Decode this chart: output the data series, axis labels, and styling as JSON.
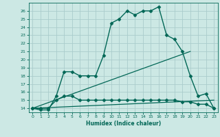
{
  "background_color": "#cce8e4",
  "grid_color": "#aacccc",
  "line_color": "#006655",
  "xlabel": "Humidex (Indice chaleur)",
  "ylim": [
    13.5,
    27.0
  ],
  "xlim": [
    -0.5,
    23.5
  ],
  "yticks": [
    14,
    15,
    16,
    17,
    18,
    19,
    20,
    21,
    22,
    23,
    24,
    25,
    26
  ],
  "xticks": [
    0,
    1,
    2,
    3,
    4,
    5,
    6,
    7,
    8,
    9,
    10,
    11,
    12,
    13,
    14,
    15,
    16,
    17,
    18,
    19,
    20,
    21,
    22,
    23
  ],
  "series": [
    {
      "x": [
        0,
        1,
        2,
        3,
        4,
        5,
        6,
        7,
        8,
        9,
        10,
        11,
        12,
        13,
        14,
        15,
        16,
        17,
        18,
        19,
        20,
        21,
        22,
        23
      ],
      "y": [
        14,
        13.8,
        13.8,
        15.5,
        18.5,
        18.5,
        18,
        18,
        18,
        20.5,
        24.5,
        25.0,
        26.0,
        25.5,
        26.0,
        26.0,
        26.5,
        23.0,
        22.5,
        21.0,
        18.0,
        15.5,
        15.8,
        14.0
      ],
      "marker": "D",
      "markersize": 2.5,
      "linewidth": 1.0
    },
    {
      "x": [
        0,
        1,
        2,
        3,
        4,
        5,
        6,
        7,
        8,
        9,
        10,
        11,
        12,
        13,
        14,
        15,
        16,
        17,
        18,
        19,
        20,
        21,
        22,
        23
      ],
      "y": [
        14,
        14,
        14,
        15.0,
        15.5,
        15.5,
        15.0,
        15.0,
        15.0,
        15.0,
        15.0,
        15.0,
        15.0,
        15.0,
        15.0,
        15.0,
        15.0,
        15.0,
        15.0,
        14.8,
        14.8,
        14.5,
        14.5,
        14.0
      ],
      "marker": "D",
      "markersize": 2.5,
      "linewidth": 1.0
    },
    {
      "x": [
        0,
        20
      ],
      "y": [
        14,
        21
      ],
      "marker": null,
      "markersize": 0,
      "linewidth": 0.9
    },
    {
      "x": [
        0,
        23
      ],
      "y": [
        14,
        15.0
      ],
      "marker": null,
      "markersize": 0,
      "linewidth": 0.9
    }
  ]
}
